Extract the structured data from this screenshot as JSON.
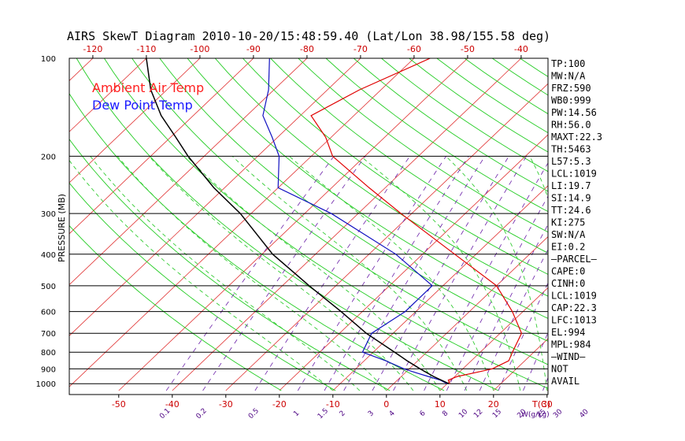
{
  "chart_data": {
    "type": "line",
    "title": "AIRS SkewT Diagram 2010-10-20/15:48:59.40 (Lat/Lon 38.98/155.58 deg)",
    "ylabel": "PRESSURE (MB)",
    "bottom_axis_temps": [
      "-50",
      "-40",
      "-30",
      "-20",
      "-10",
      "0",
      "10",
      "20",
      "30"
    ],
    "bottom_axis_unit": "T(C)",
    "top_axis_temps": [
      "-120",
      "-110",
      "-100",
      "-90",
      "-80",
      "-70",
      "-60",
      "-50",
      "-40"
    ],
    "pressure_labels": [
      "100",
      "200",
      "300",
      "400",
      "500",
      "600",
      "700",
      "800",
      "900",
      "1000"
    ],
    "mixing_ratio_labels": [
      "0.1",
      "0.2",
      "0.5",
      "1",
      "1.5",
      "2",
      "3",
      "4",
      "6",
      "8",
      "10",
      "12",
      "15",
      "20",
      "25",
      "30",
      "40"
    ],
    "mixing_ratio_unit": "W(g/kg)",
    "legend": [
      {
        "name": "Ambient Air Temp",
        "color": "#ff2020"
      },
      {
        "name": "Dew Point Temp",
        "color": "#1a1aff"
      }
    ],
    "series": [
      {
        "name": "Ambient Air Temp",
        "color": "#e00000",
        "points": [
          [
            1000,
            10.5
          ],
          [
            975,
            9.5
          ],
          [
            950,
            10.5
          ],
          [
            925,
            13
          ],
          [
            900,
            15.5
          ],
          [
            850,
            17
          ],
          [
            800,
            16
          ],
          [
            700,
            14
          ],
          [
            600,
            8
          ],
          [
            500,
            0
          ],
          [
            400,
            -14
          ],
          [
            300,
            -32
          ],
          [
            250,
            -43
          ],
          [
            200,
            -56
          ],
          [
            175,
            -61
          ],
          [
            150,
            -68
          ],
          [
            125,
            -64
          ],
          [
            100,
            -57
          ]
        ]
      },
      {
        "name": "Dew Point Temp",
        "color": "#1010c0",
        "points": [
          [
            1000,
            10
          ],
          [
            975,
            8
          ],
          [
            950,
            5
          ],
          [
            925,
            2
          ],
          [
            900,
            -1
          ],
          [
            850,
            -6
          ],
          [
            800,
            -12
          ],
          [
            700,
            -14
          ],
          [
            600,
            -12
          ],
          [
            500,
            -12
          ],
          [
            400,
            -25
          ],
          [
            300,
            -45
          ],
          [
            250,
            -60
          ],
          [
            200,
            -66
          ],
          [
            175,
            -71
          ],
          [
            150,
            -77
          ],
          [
            125,
            -81
          ],
          [
            100,
            -87
          ]
        ]
      },
      {
        "name": "Parcel",
        "color": "#000000",
        "points": [
          [
            1000,
            10.3
          ],
          [
            950,
            6
          ],
          [
            900,
            2
          ],
          [
            850,
            -2
          ],
          [
            800,
            -6
          ],
          [
            700,
            -15
          ],
          [
            600,
            -24
          ],
          [
            500,
            -35
          ],
          [
            400,
            -48
          ],
          [
            300,
            -62
          ],
          [
            250,
            -72
          ],
          [
            200,
            -83
          ],
          [
            175,
            -89
          ],
          [
            150,
            -96
          ],
          [
            125,
            -103
          ],
          [
            100,
            -110
          ]
        ]
      }
    ],
    "skew_lines": {
      "isotherms_every_c": 10,
      "dry_adiabats_theta_k": [
        250,
        260,
        270,
        280,
        290,
        300,
        310,
        320,
        330,
        340,
        350,
        360,
        370,
        380,
        390,
        400,
        410,
        420,
        430,
        440,
        450,
        460,
        470,
        480,
        490,
        500,
        520,
        540,
        560,
        580,
        600
      ],
      "moist_adiabats_start_c": [
        -10,
        -5,
        0,
        5,
        10,
        15,
        20,
        25,
        30,
        35,
        40
      ],
      "mixing_ratio_lines_gkg": [
        0.1,
        0.2,
        0.5,
        1,
        1.5,
        2,
        3,
        4,
        6,
        8,
        10,
        12,
        15,
        20,
        25,
        30,
        40
      ]
    },
    "stats": [
      "TP:100",
      "MW:N/A",
      "FRZ:590",
      "WB0:999",
      "PW:14.56",
      "RH:56.0",
      "MAXT:22.3",
      "TH:5463",
      "L57:5.3",
      "LCL:1019",
      "LI:19.7",
      "SI:14.9",
      "TT:24.6",
      "KI:275",
      "SW:N/A",
      "EI:0.2",
      "–PARCEL–",
      "CAPE:0",
      "CINH:0",
      "LCL:1019",
      "CAP:22.3",
      "LFC:1013",
      "EL:994",
      "MPL:984",
      "–WIND–",
      "NOT",
      "AVAIL"
    ]
  }
}
